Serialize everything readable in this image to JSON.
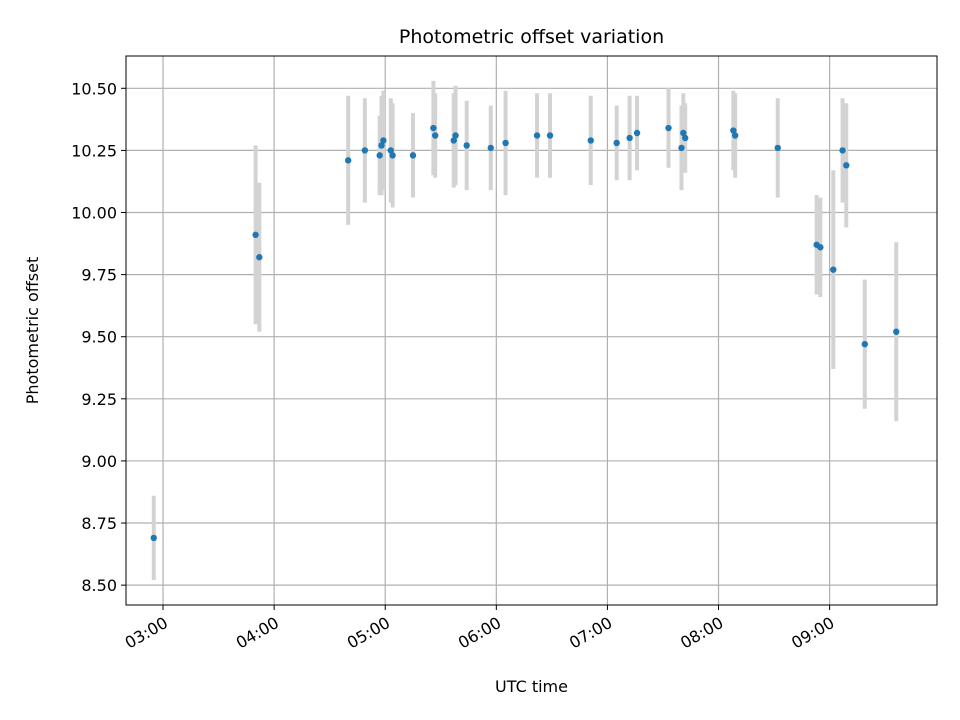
{
  "chart_data": {
    "type": "scatter",
    "title": "Photometric offset variation",
    "xlabel": "UTC time",
    "ylabel": "Photometric offset",
    "x_unit": "UTC time (HH:MM)",
    "xlim": [
      "02:40",
      "09:58"
    ],
    "ylim": [
      8.42,
      10.63
    ],
    "grid": true,
    "x_ticks": [
      "03:00",
      "04:00",
      "05:00",
      "06:00",
      "07:00",
      "08:00",
      "09:00"
    ],
    "y_ticks": [
      "8.50",
      "8.75",
      "9.00",
      "9.25",
      "9.50",
      "9.75",
      "10.00",
      "10.25",
      "10.50"
    ],
    "y_tick_values": [
      8.5,
      8.75,
      9.0,
      9.25,
      9.5,
      9.75,
      10.0,
      10.25,
      10.5
    ],
    "colors": {
      "point": "#1f77b4",
      "errorbar": "#d3d3d3",
      "grid": "#b0b0b0"
    },
    "points": [
      {
        "x": "02:55",
        "y": 8.69,
        "err": 0.17
      },
      {
        "x": "03:50",
        "y": 9.91,
        "err": 0.36
      },
      {
        "x": "03:52",
        "y": 9.82,
        "err": 0.3
      },
      {
        "x": "04:40",
        "y": 10.21,
        "err": 0.26
      },
      {
        "x": "04:49",
        "y": 10.25,
        "err": 0.21
      },
      {
        "x": "04:57",
        "y": 10.23,
        "err": 0.16
      },
      {
        "x": "04:58",
        "y": 10.27,
        "err": 0.2
      },
      {
        "x": "04:59",
        "y": 10.29,
        "err": 0.2
      },
      {
        "x": "05:03",
        "y": 10.25,
        "err": 0.21
      },
      {
        "x": "05:04",
        "y": 10.23,
        "err": 0.21
      },
      {
        "x": "05:15",
        "y": 10.23,
        "err": 0.17
      },
      {
        "x": "05:26",
        "y": 10.34,
        "err": 0.19
      },
      {
        "x": "05:27",
        "y": 10.31,
        "err": 0.17
      },
      {
        "x": "05:37",
        "y": 10.29,
        "err": 0.19
      },
      {
        "x": "05:38",
        "y": 10.31,
        "err": 0.2
      },
      {
        "x": "05:44",
        "y": 10.27,
        "err": 0.18
      },
      {
        "x": "05:57",
        "y": 10.26,
        "err": 0.17
      },
      {
        "x": "06:05",
        "y": 10.28,
        "err": 0.21
      },
      {
        "x": "06:22",
        "y": 10.31,
        "err": 0.17
      },
      {
        "x": "06:29",
        "y": 10.31,
        "err": 0.17
      },
      {
        "x": "06:51",
        "y": 10.29,
        "err": 0.18
      },
      {
        "x": "07:05",
        "y": 10.28,
        "err": 0.15
      },
      {
        "x": "07:12",
        "y": 10.3,
        "err": 0.17
      },
      {
        "x": "07:16",
        "y": 10.32,
        "err": 0.15
      },
      {
        "x": "07:33",
        "y": 10.34,
        "err": 0.16
      },
      {
        "x": "07:40",
        "y": 10.26,
        "err": 0.17
      },
      {
        "x": "07:41",
        "y": 10.32,
        "err": 0.16
      },
      {
        "x": "07:42",
        "y": 10.3,
        "err": 0.14
      },
      {
        "x": "08:08",
        "y": 10.33,
        "err": 0.16
      },
      {
        "x": "08:09",
        "y": 10.31,
        "err": 0.17
      },
      {
        "x": "08:32",
        "y": 10.26,
        "err": 0.2
      },
      {
        "x": "08:53",
        "y": 9.87,
        "err": 0.2
      },
      {
        "x": "08:55",
        "y": 9.86,
        "err": 0.2
      },
      {
        "x": "09:02",
        "y": 9.77,
        "err": 0.4
      },
      {
        "x": "09:07",
        "y": 10.25,
        "err": 0.21
      },
      {
        "x": "09:09",
        "y": 10.19,
        "err": 0.25
      },
      {
        "x": "09:19",
        "y": 9.47,
        "err": 0.26
      },
      {
        "x": "09:36",
        "y": 9.52,
        "err": 0.36
      }
    ]
  }
}
